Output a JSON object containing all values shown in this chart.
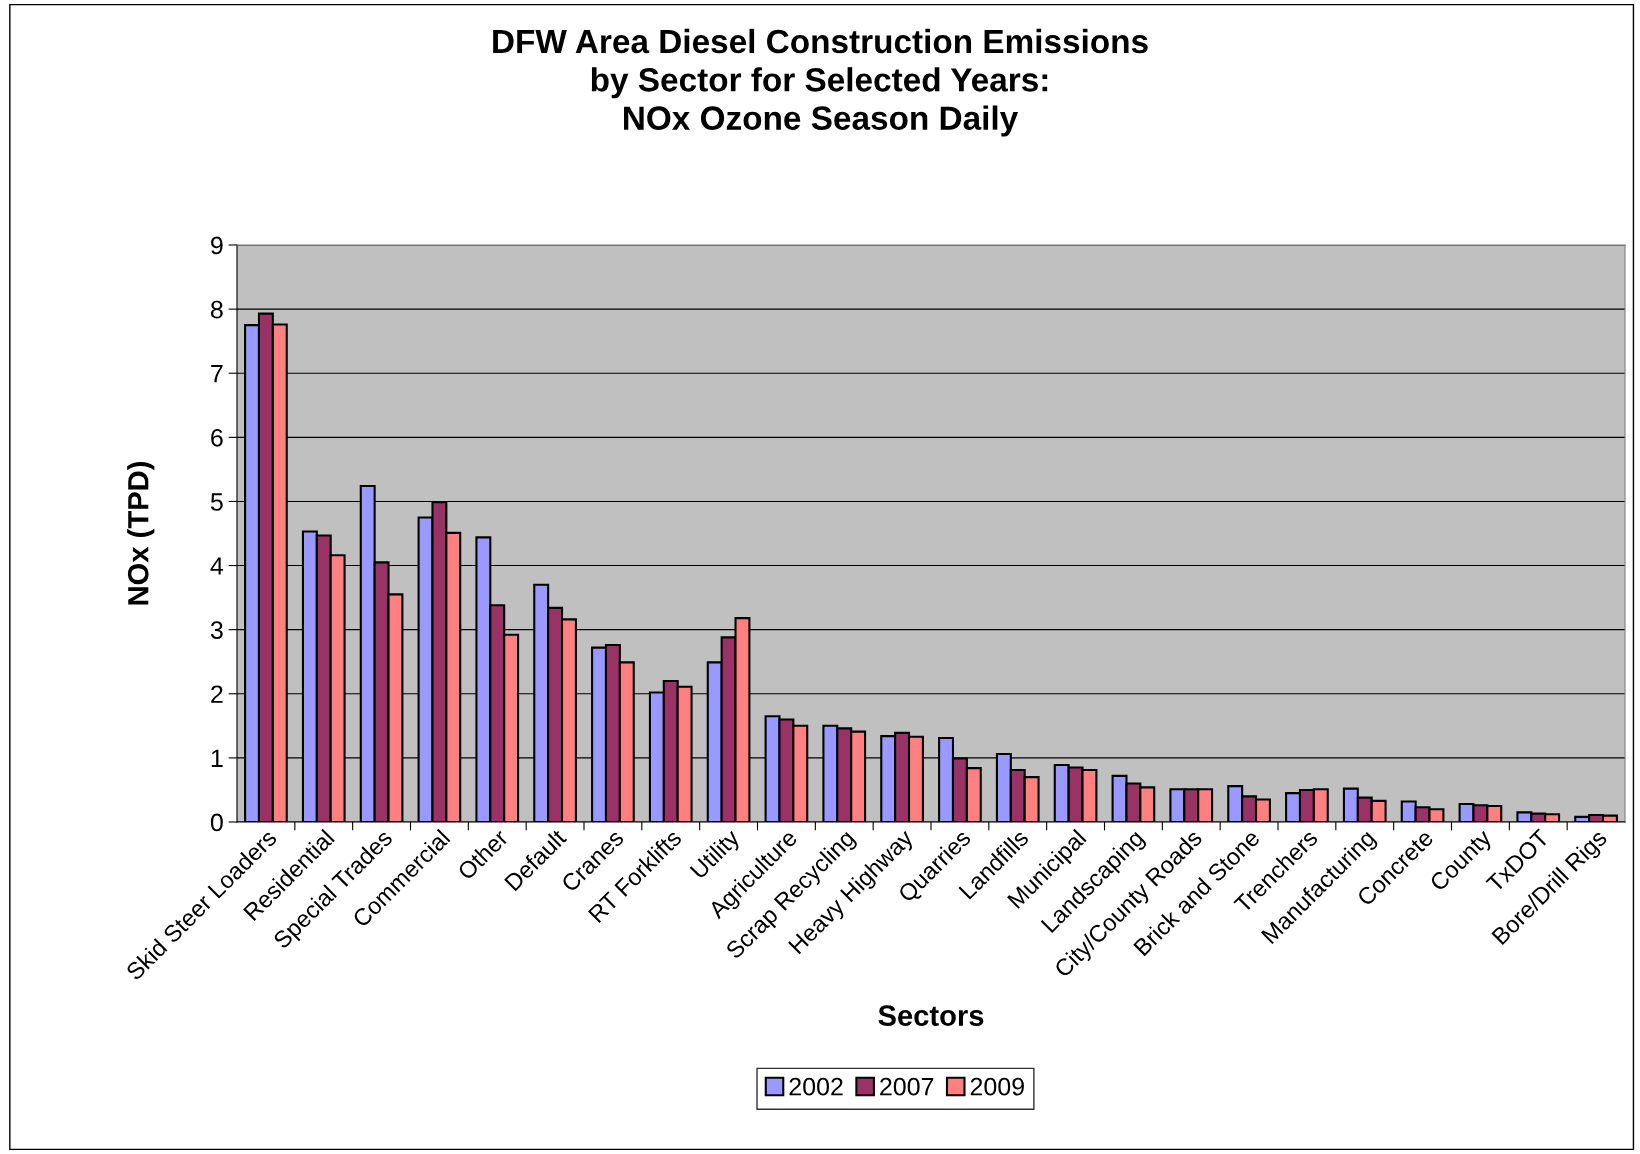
{
  "chart_data": {
    "type": "bar",
    "title": "DFW Area Diesel Construction Emissions\nby Sector for Selected Years:\nNOx Ozone Season Daily",
    "xlabel": "Sectors",
    "ylabel": "NOx (TPD)",
    "categories": [
      "Skid Steer Loaders",
      "Residential",
      "Special Trades",
      "Commercial",
      "Other",
      "Default",
      "Cranes",
      "RT Forklifts",
      "Utility",
      "Agriculture",
      "Scrap Recycling",
      "Heavy Highway",
      "Quarries",
      "Landfills",
      "Municipal",
      "Landscaping",
      "City/County Roads",
      "Brick and Stone",
      "Trenchers",
      "Manufacturing",
      "Concrete",
      "County",
      "TxDOT",
      "Bore/Drill Rigs"
    ],
    "series": [
      {
        "name": "2002",
        "color": "#9999ff",
        "values": [
          7.75,
          4.53,
          5.24,
          4.75,
          4.44,
          3.7,
          2.72,
          2.02,
          2.49,
          1.65,
          1.5,
          1.34,
          1.31,
          1.06,
          0.89,
          0.72,
          0.51,
          0.56,
          0.45,
          0.52,
          0.32,
          0.28,
          0.15,
          0.08
        ]
      },
      {
        "name": "2007",
        "color": "#993366",
        "values": [
          7.93,
          4.47,
          4.05,
          4.99,
          3.38,
          3.34,
          2.76,
          2.2,
          2.88,
          1.6,
          1.46,
          1.39,
          0.99,
          0.81,
          0.85,
          0.6,
          0.51,
          0.4,
          0.5,
          0.38,
          0.23,
          0.26,
          0.13,
          0.11
        ]
      },
      {
        "name": "2009",
        "color": "#ff8080",
        "values": [
          7.76,
          4.16,
          3.55,
          4.51,
          2.92,
          3.16,
          2.49,
          2.11,
          3.18,
          1.5,
          1.41,
          1.33,
          0.84,
          0.7,
          0.81,
          0.54,
          0.51,
          0.35,
          0.51,
          0.33,
          0.2,
          0.25,
          0.12,
          0.1
        ]
      }
    ],
    "ylim": [
      0,
      9
    ],
    "yticks": [
      0,
      1,
      2,
      3,
      4,
      5,
      6,
      7,
      8,
      9
    ],
    "grid": "y",
    "legend": "bottom"
  }
}
